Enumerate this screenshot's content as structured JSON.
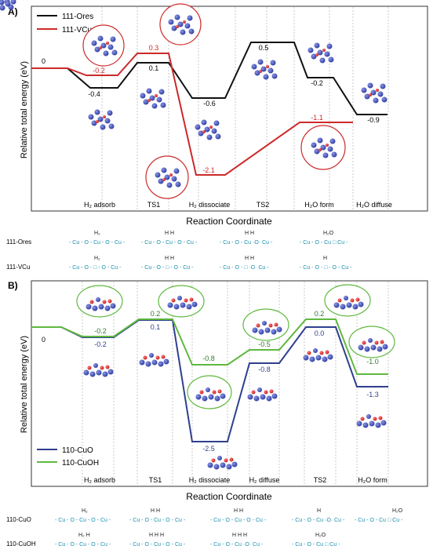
{
  "panel_a": {
    "letter": "A)",
    "ylabel": "Relative total energy (eV)",
    "xlabel": "Reaction Coordinate",
    "legend": [
      {
        "name": "111-Ores",
        "color": "#111111"
      },
      {
        "name": "111-VCu",
        "color": "#cc2a2a"
      }
    ],
    "zero_label": "0",
    "steps": [
      "H₂ adsorb",
      "TS1",
      "H₂ dissociate",
      "TS2",
      "H₂O form",
      "H₂O diffuse"
    ],
    "ores_labels": [
      "-0.4",
      "0.1",
      "-0.6",
      "0.5",
      "-0.2",
      "-0.9"
    ],
    "vcu_labels": [
      "-0.2",
      "0.3",
      "-2.1",
      "-1.1"
    ],
    "scheme_rows": [
      {
        "label": "111-Ores",
        "formulas": [
          "- Cu - O - Cu - O - Cu -",
          "- Cu - O - Cu - O - Cu -",
          "- Cu - O - Cu ·O· Cu -",
          "- Cu - O - Cu □ Cu -"
        ],
        "top": [
          "H₂",
          "H   H",
          "H   H",
          "H₂O"
        ]
      },
      {
        "label": "111-VCu",
        "formulas": [
          "- Cu - O - □ - O - Cu -",
          "- Cu - O - □ - O - Cu -",
          "- Cu - O - □ ·O· Cu -",
          "- Cu - O - □ - O - Cu -"
        ],
        "top": [
          "H₂",
          "H   H",
          "H   H",
          "H"
        ]
      }
    ]
  },
  "panel_b": {
    "letter": "B)",
    "ylabel": "Relative total energy (eV)",
    "xlabel": "Reaction Coordinate",
    "legend": [
      {
        "name": "110-CuO",
        "color": "#2f3f8f"
      },
      {
        "name": "110-CuOH",
        "color": "#5fb83f"
      }
    ],
    "zero_label": "0",
    "steps": [
      "H₂ adsorb",
      "TS1",
      "H₂ dissociate",
      "H₂ diffuse",
      "TS2",
      "H₂O form"
    ],
    "cuo_labels": [
      "-0.2",
      "0.1",
      "-2.5",
      "-0.8",
      "0.0",
      "-1.3"
    ],
    "cuoh_labels": [
      "-0.2",
      "0.2",
      "-0.8",
      "-0.5",
      "0.2",
      "-1.0"
    ],
    "scheme_rows": [
      {
        "label": "110-CuO",
        "formulas": [
          "- Cu - O - Cu - O - Cu -",
          "- Cu - O - Cu - O - Cu -",
          "- Cu - O - Cu - O - Cu -",
          "- Cu - O - Cu ·O· Cu -",
          "- Cu - O - Cu □ Cu -"
        ],
        "top": [
          "H₂",
          "H   H",
          "H   H",
          "H",
          "H₂O"
        ]
      },
      {
        "label": "110-CuOH",
        "formulas": [
          "- Cu - O - Cu - O - Cu -",
          "- Cu - O - Cu - O - Cu -",
          "- Cu - O - Cu ·O· Cu -",
          "- Cu - O - Cu □ Cu -"
        ],
        "top": [
          "H₂  H",
          "H   H  H",
          "H   H  H",
          "H₂O"
        ]
      }
    ]
  }
}
